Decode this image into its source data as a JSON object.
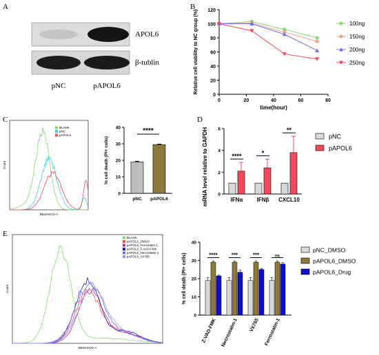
{
  "panel_labels": [
    "A",
    "B",
    "C",
    "D",
    "E"
  ],
  "colors": {
    "green": "#7fdc6a",
    "salmon": "#f6a08a",
    "blue": "#6f6fe0",
    "red": "#ef4b5a",
    "olive": "#8d7a3c",
    "navy": "#1010cc"
  },
  "panel_a": {
    "bands": [
      "APOL6",
      "β-tublin"
    ],
    "lanes": [
      "pNC",
      "pAPOL6"
    ]
  },
  "panel_c_flow": {
    "legend": [
      "BLANK",
      "pNC",
      "pAPOL6"
    ],
    "xlabel": "BB15-ECD-A",
    "ylabel": "Count"
  },
  "panel_e_flow": {
    "legend": [
      "BLANK",
      "pAPOL6_DMSO",
      "pAPOL6_Ferrostatin-1",
      "pAPOL6_Z-VAD-FMK",
      "pAPOL6_Necrostatin-1",
      "pAPOL6_VX765"
    ],
    "xlabel": "BB15-ECD-A",
    "ylabel": "Count"
  },
  "chart_data": [
    {
      "id": "B",
      "type": "line",
      "x": [
        0,
        24,
        48,
        72
      ],
      "xlabel": "time(hour)",
      "ylabel": "Relative cell viability to NC group (%)",
      "xticks": [
        "0",
        "20",
        "40",
        "60",
        "80"
      ],
      "yticks": [
        "0",
        "20",
        "40",
        "60",
        "80",
        "100",
        "120"
      ],
      "xlim": [
        0,
        80
      ],
      "ylim": [
        0,
        120
      ],
      "series": [
        {
          "name": "100ng",
          "values": [
            100,
            103,
            92,
            80
          ],
          "color": "#7fdc6a",
          "marker": "circle"
        },
        {
          "name": "150ng",
          "values": [
            100,
            101,
            88,
            75
          ],
          "color": "#f6a08a",
          "marker": "circle"
        },
        {
          "name": "200ng",
          "values": [
            100,
            100,
            85,
            62
          ],
          "color": "#6f6fe0",
          "marker": "triangle"
        },
        {
          "name": "250ng",
          "values": [
            100,
            90,
            57,
            50
          ],
          "color": "#ef4b5a",
          "marker": "triangle-down"
        }
      ]
    },
    {
      "id": "C",
      "type": "bar",
      "categories": [
        "pNC",
        "pAPOL6"
      ],
      "values": [
        19,
        29.5
      ],
      "errors": [
        0.4,
        0.3
      ],
      "colors": [
        "#bdbdbd",
        "#8d7a3c"
      ],
      "ylabel": "% cell death (PI+ cells)",
      "yticks": [
        "0",
        "10",
        "20",
        "30",
        "40"
      ],
      "ylim": [
        0,
        40
      ],
      "significance": "****"
    },
    {
      "id": "D",
      "type": "bar",
      "categories": [
        "IFNα",
        "IFNβ",
        "CXCL10"
      ],
      "ylabel": "mRNA level relative to GAPDH",
      "yticks": [
        "0",
        "2",
        "4",
        "6"
      ],
      "ylim": [
        0,
        6
      ],
      "series": [
        {
          "name": "pNC",
          "values": [
            1,
            1,
            1
          ],
          "errors": [
            0,
            0,
            0
          ],
          "color": "#d9d9d9"
        },
        {
          "name": "pAPOL6",
          "values": [
            2.1,
            2.4,
            3.8
          ],
          "errors": [
            0.8,
            0.8,
            1.5
          ],
          "color": "#ef4b5a"
        }
      ],
      "significance": [
        "****",
        "*",
        "**"
      ]
    },
    {
      "id": "E",
      "type": "bar",
      "categories": [
        "Z-VAD-FMK",
        "Necrostatin-1",
        "VX765",
        "Ferrostatin-1"
      ],
      "ylabel": "% cell death (PI+ cells)",
      "yticks": [
        "0",
        "10",
        "20",
        "30",
        "40"
      ],
      "ylim": [
        0,
        40
      ],
      "series": [
        {
          "name": "pNC_DMSO",
          "values": [
            19,
            19,
            19,
            19
          ],
          "errors": [
            1.5,
            1.5,
            1.5,
            1.5
          ],
          "color": "#d9d9d9"
        },
        {
          "name": "pAPOL6_DMSO",
          "values": [
            29,
            29,
            29,
            29
          ],
          "errors": [
            0.7,
            0.7,
            0.7,
            0.7
          ],
          "color": "#8d7a3c"
        },
        {
          "name": "pAPOL6_Drug",
          "values": [
            21.5,
            23.5,
            25,
            28
          ],
          "errors": [
            0.4,
            1.2,
            0.6,
            0.8
          ],
          "color": "#1010cc"
        }
      ],
      "significance": [
        "****",
        "***",
        "***",
        "ns"
      ]
    }
  ]
}
